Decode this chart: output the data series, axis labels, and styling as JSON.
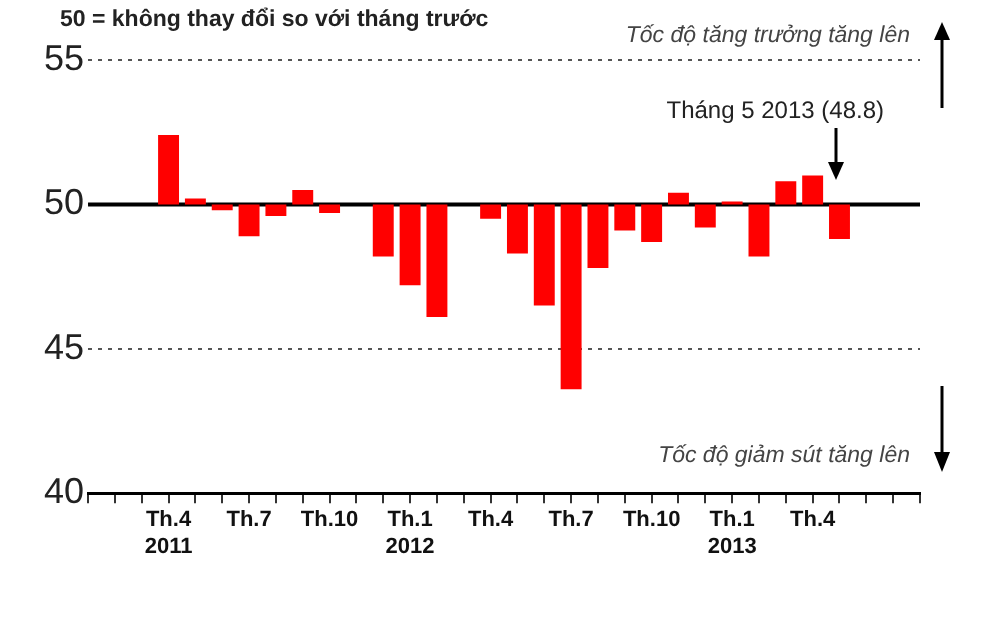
{
  "chart_data": {
    "type": "bar",
    "title": "50 = không thay đổi so với tháng trước",
    "categories": [
      null,
      null,
      null,
      "Th.4\n2011",
      null,
      null,
      "Th.7",
      null,
      null,
      "Th.10",
      null,
      null,
      "Th.1\n2012",
      null,
      null,
      "Th.4",
      null,
      null,
      "Th.7",
      null,
      null,
      "Th.10",
      null,
      null,
      "Th.1\n2013",
      null,
      null,
      "Th.4",
      null,
      null,
      null,
      null
    ],
    "values": [
      null,
      null,
      null,
      2.4,
      0.2,
      -0.2,
      -1.1,
      -0.4,
      0.5,
      -0.3,
      null,
      -1.8,
      -2.8,
      -3.9,
      null,
      -0.5,
      -1.7,
      -3.5,
      -6.4,
      -2.2,
      -0.9,
      -1.3,
      0.4,
      -0.8,
      0.1,
      -1.8,
      0.8,
      1.0,
      -1.2,
      null,
      null,
      null
    ],
    "base": [
      null,
      null,
      null,
      50,
      50,
      50,
      50,
      50,
      50,
      50,
      null,
      50,
      50,
      50,
      null,
      50,
      50,
      50,
      50,
      50,
      50,
      50,
      50,
      50,
      50,
      50,
      50,
      50,
      50,
      null,
      null,
      null
    ],
    "color": "#ff0000",
    "ylim": [
      40,
      55
    ],
    "yticks": [
      40,
      45,
      50,
      55
    ],
    "grid": "y",
    "ref_lines": [
      {
        "axis": "y",
        "value": 50,
        "color": "#000000"
      }
    ],
    "annotations": [
      "Tốc độ tăng trưởng tăng lên",
      "Tháng 5 2013 (48.8)",
      "Tốc độ giảm sút tăng lên"
    ]
  }
}
